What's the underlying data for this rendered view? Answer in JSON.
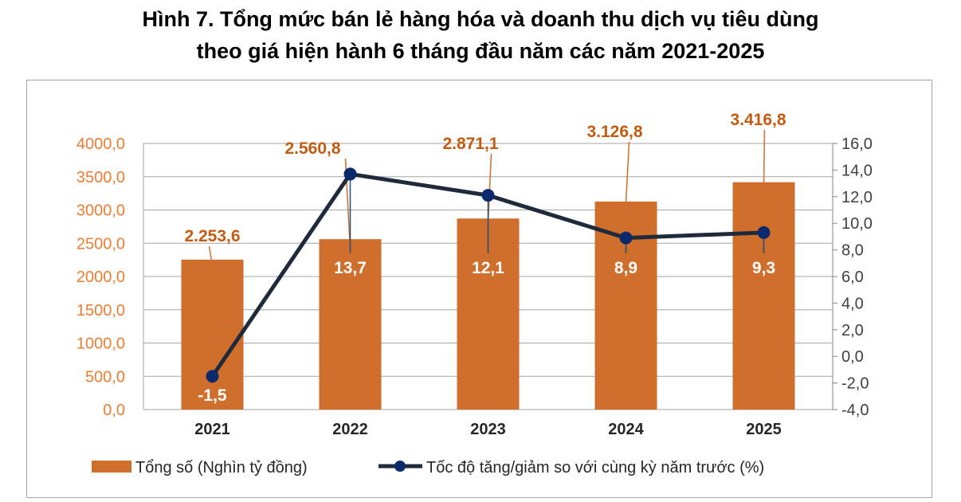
{
  "chart_data": {
    "type": "bar+line",
    "title_line1": "Hình 7. Tổng mức bán lẻ hàng hóa và doanh thu dịch vụ tiêu dùng",
    "title_line2": "theo giá hiện hành 6 tháng đầu năm các năm 2021-2025",
    "categories": [
      "2021",
      "2022",
      "2023",
      "2024",
      "2025"
    ],
    "series": [
      {
        "name": "Tổng số (Nghìn tỷ đồng)",
        "type": "bar",
        "axis": "left",
        "color": "#d06e2c",
        "values": [
          2253.6,
          2560.8,
          2871.1,
          3126.8,
          3416.8
        ],
        "labels": [
          "2.253,6",
          "2.560,8",
          "2.871,1",
          "3.126,8",
          "3.416,8"
        ]
      },
      {
        "name": "Tốc độ tăng/giảm so với cùng kỳ năm trước (%)",
        "type": "line",
        "axis": "right",
        "color": "#1f2a3a",
        "marker_color": "#0b2a6b",
        "values": [
          -1.5,
          13.7,
          12.1,
          8.9,
          9.3
        ],
        "labels": [
          "-1,5",
          "13,7",
          "12,1",
          "8,9",
          "9,3"
        ]
      }
    ],
    "left_axis": {
      "range": [
        0,
        4000
      ],
      "ticks": [
        "0,0",
        "500,0",
        "1000,0",
        "1500,0",
        "2000,0",
        "2500,0",
        "3000,0",
        "3500,0",
        "4000,0"
      ],
      "color": "#ed7d31"
    },
    "right_axis": {
      "range": [
        -4,
        16
      ],
      "ticks": [
        "-4,0",
        "-2,0",
        "0,0",
        "2,0",
        "4,0",
        "6,0",
        "8,0",
        "10,0",
        "12,0",
        "14,0",
        "16,0"
      ]
    },
    "grid": true,
    "legend": "bottom"
  }
}
